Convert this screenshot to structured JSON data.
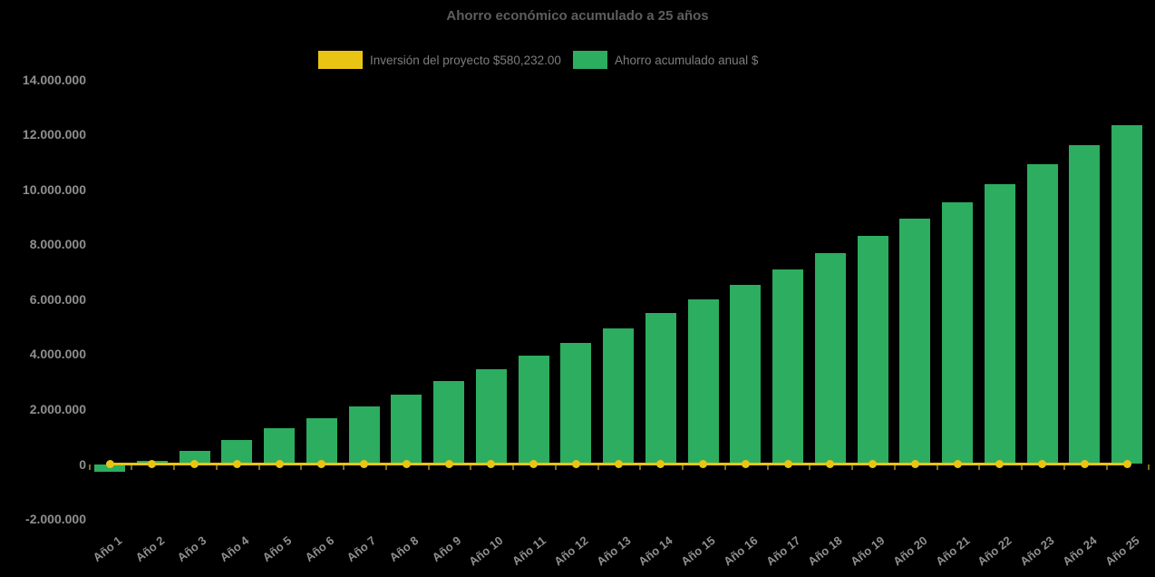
{
  "title": "Ahorro económico acumulado a 25 años",
  "legend": [
    {
      "label": "Inversión del proyecto $580,232.00",
      "color": "#E9C414",
      "series_type": "line"
    },
    {
      "label": "Ahorro acumulado anual $",
      "color": "#2DAD5F",
      "series_type": "bar"
    }
  ],
  "colors": {
    "background": "#000000",
    "bar_green": "#2DAD5F",
    "line_yellow": "#E9C414",
    "title_text": "#5E5E5E",
    "legend_text": "#7D7D7D",
    "axis_text": "#8F8F8F"
  },
  "chart_data": {
    "type": "bar",
    "title": "Ahorro económico acumulado a 25 años",
    "categories": [
      "Año 1",
      "Año 2",
      "Año 3",
      "Año 4",
      "Año 5",
      "Año 6",
      "Año 7",
      "Año 8",
      "Año 9",
      "Año 10",
      "Año 11",
      "Año 12",
      "Año 13",
      "Año 14",
      "Año 15",
      "Año 16",
      "Año 17",
      "Año 18",
      "Año 19",
      "Año 20",
      "Año 21",
      "Año 22",
      "Año 23",
      "Año 24",
      "Año 25"
    ],
    "series": [
      {
        "name": "Ahorro acumulado anual $",
        "type": "bar",
        "color": "#2DAD5F",
        "values": [
          -280000,
          100000,
          470000,
          880000,
          1300000,
          1680000,
          2090000,
          2510000,
          3030000,
          3450000,
          3960000,
          4400000,
          4940000,
          5490000,
          5980000,
          6510000,
          7080000,
          7690000,
          8290000,
          8920000,
          9510000,
          10180000,
          10910000,
          11600000,
          12320000
        ]
      },
      {
        "name": "Inversión del proyecto $580,232.00",
        "type": "line",
        "color": "#E9C414",
        "marker": "circle",
        "values": [
          0,
          0,
          0,
          0,
          0,
          0,
          0,
          0,
          0,
          0,
          0,
          0,
          0,
          0,
          0,
          0,
          0,
          0,
          0,
          0,
          0,
          0,
          0,
          0,
          0
        ]
      }
    ],
    "xlabel": "",
    "ylabel": "",
    "ylim": [
      -2000000,
      14000000
    ],
    "y_ticks": [
      {
        "label": "14.000.000",
        "value": 14000000
      },
      {
        "label": "12.000.000",
        "value": 12000000
      },
      {
        "label": "10.000.000",
        "value": 10000000
      },
      {
        "label": "8.000.000",
        "value": 8000000
      },
      {
        "label": "6.000.000",
        "value": 6000000
      },
      {
        "label": "4.000.000",
        "value": 4000000
      },
      {
        "label": "2.000.000",
        "value": 2000000
      },
      {
        "label": "0",
        "value": 0
      },
      {
        "label": "-2.000.000",
        "value": -2000000
      }
    ],
    "grid": false,
    "legend_position": "top"
  }
}
